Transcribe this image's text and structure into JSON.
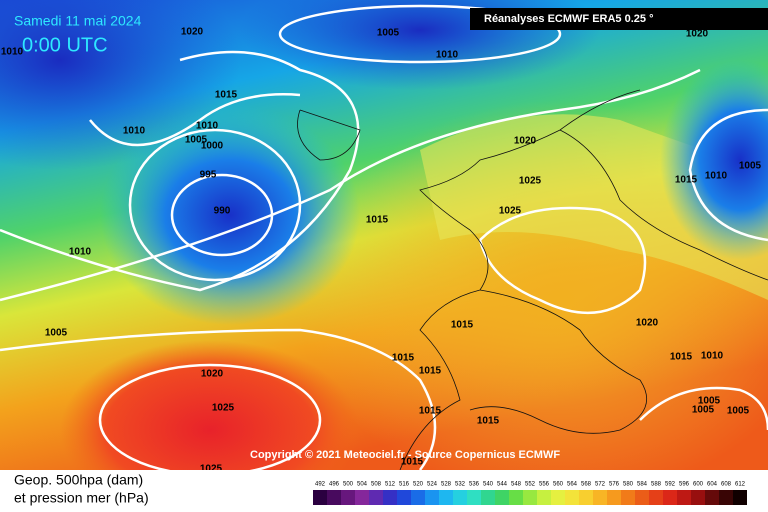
{
  "header": {
    "title": "Samedi 11 mai 2024",
    "time": "0:00 UTC",
    "source": "Réanalyses ECMWF ERA5 0.25 °"
  },
  "copyright": "Copyright © 2021 Meteociel.fr - Source Copernicus ECMWF",
  "legend": {
    "line1": "Geop. 500hpa (dam)",
    "line2": "et pression mer (hPa)",
    "scale": [
      492,
      496,
      500,
      504,
      508,
      512,
      516,
      520,
      524,
      528,
      532,
      536,
      540,
      544,
      548,
      552,
      556,
      560,
      564,
      568,
      572,
      576,
      580,
      584,
      588,
      592,
      596,
      600,
      604,
      608,
      612
    ]
  },
  "isobar_labels": [
    1020,
    1005,
    1010,
    1020,
    1010,
    1015,
    1010,
    1010,
    1005,
    1000,
    1020,
    995,
    1025,
    1015,
    1010,
    1005,
    990,
    1025,
    1015,
    1010,
    1020,
    1015,
    1005,
    1015,
    1015,
    1010,
    1020,
    1015,
    1025,
    1015,
    1015,
    1005,
    1005,
    1005,
    1015,
    1025
  ]
}
